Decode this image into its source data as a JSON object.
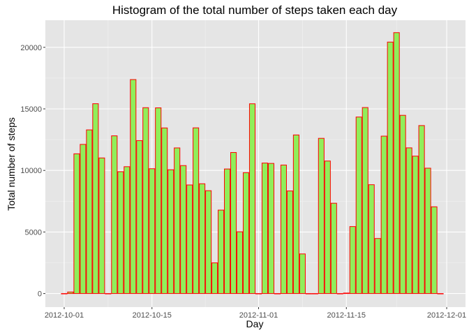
{
  "chart_data": {
    "type": "bar",
    "title": "Histogram of the total number of steps taken each day",
    "xlabel": "Day",
    "ylabel": "Total number of steps",
    "x_tick_labels": [
      "2012-10-01",
      "2012-10-15",
      "2012-11-01",
      "2012-11-15",
      "2012-12-01"
    ],
    "x_ticks_day_index": [
      0,
      14,
      31,
      45,
      61
    ],
    "y_ticks": [
      0,
      5000,
      10000,
      15000,
      20000
    ],
    "y_tick_labels": [
      "0",
      "5000",
      "10000",
      "15000",
      "20000"
    ],
    "xlim_day_index": [
      -3,
      64
    ],
    "ylim": [
      -1100,
      22200
    ],
    "grid": true,
    "colors": {
      "panel_background": "#e5e5e5",
      "grid_major": "#ffffff",
      "grid_minor": "#f2f2f2",
      "bar_fill": "#90ee5a",
      "bar_outline": "#ff0000",
      "tick_mark": "#333333"
    },
    "days": [
      "2012-10-01",
      "2012-10-02",
      "2012-10-03",
      "2012-10-04",
      "2012-10-05",
      "2012-10-06",
      "2012-10-07",
      "2012-10-08",
      "2012-10-09",
      "2012-10-10",
      "2012-10-11",
      "2012-10-12",
      "2012-10-13",
      "2012-10-14",
      "2012-10-15",
      "2012-10-16",
      "2012-10-17",
      "2012-10-18",
      "2012-10-19",
      "2012-10-20",
      "2012-10-21",
      "2012-10-22",
      "2012-10-23",
      "2012-10-24",
      "2012-10-25",
      "2012-10-26",
      "2012-10-27",
      "2012-10-28",
      "2012-10-29",
      "2012-10-30",
      "2012-10-31",
      "2012-11-01",
      "2012-11-02",
      "2012-11-03",
      "2012-11-04",
      "2012-11-05",
      "2012-11-06",
      "2012-11-07",
      "2012-11-08",
      "2012-11-09",
      "2012-11-10",
      "2012-11-11",
      "2012-11-12",
      "2012-11-13",
      "2012-11-14",
      "2012-11-15",
      "2012-11-16",
      "2012-11-17",
      "2012-11-18",
      "2012-11-19",
      "2012-11-20",
      "2012-11-21",
      "2012-11-22",
      "2012-11-23",
      "2012-11-24",
      "2012-11-25",
      "2012-11-26",
      "2012-11-27",
      "2012-11-28",
      "2012-11-29",
      "2012-11-30"
    ],
    "values": [
      0,
      126,
      11352,
      12116,
      13294,
      15420,
      11015,
      0,
      12811,
      9900,
      10304,
      17382,
      12426,
      15098,
      10139,
      15084,
      13452,
      10056,
      11829,
      10395,
      8821,
      13460,
      8918,
      8355,
      2492,
      6778,
      10119,
      11458,
      5018,
      9819,
      15414,
      0,
      10600,
      10571,
      0,
      10439,
      8334,
      12883,
      3219,
      0,
      0,
      12608,
      10765,
      7336,
      0,
      41,
      5441,
      14339,
      15110,
      8841,
      4472,
      12787,
      20427,
      21194,
      14478,
      11834,
      11162,
      13646,
      10183,
      7047,
      0
    ]
  }
}
